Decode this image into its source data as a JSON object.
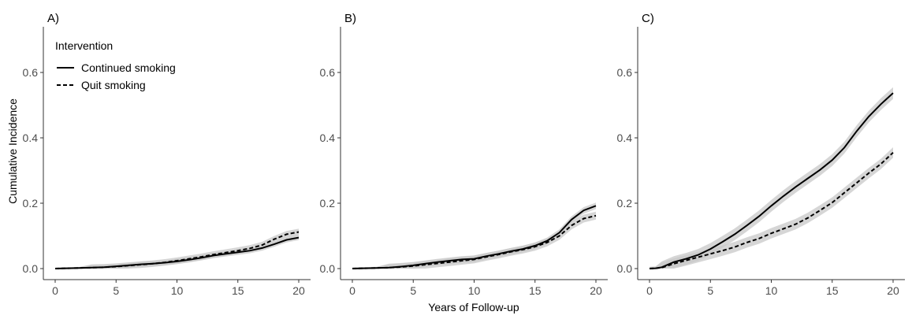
{
  "chart_data": {
    "type": "line",
    "ylabel": "Cumulative Incidence",
    "xlabel": "Years of Follow-up",
    "xlim": [
      0,
      20
    ],
    "ylim": [
      0,
      0.7
    ],
    "xticks": [
      0,
      5,
      10,
      15,
      20
    ],
    "yticks": [
      "0.0",
      "0.2",
      "0.4",
      "0.6"
    ],
    "grid": false,
    "legend": {
      "title": "Intervention",
      "placement": "top-left",
      "entries": [
        {
          "name": "Continued smoking",
          "linestyle": "solid"
        },
        {
          "name": "Quit smoking",
          "linestyle": "dashed"
        }
      ]
    },
    "colors": {
      "line": "#000000",
      "band": "#c8c8c8",
      "axis": "#333333",
      "tick_text": "#4d4d4d"
    },
    "panels": [
      {
        "tag": "A)",
        "series": [
          {
            "name": "Continued smoking",
            "band": 0.008,
            "x": [
              0,
              1,
              2,
              3,
              4,
              5,
              6,
              7,
              8,
              9,
              10,
              11,
              12,
              13,
              14,
              15,
              16,
              17,
              18,
              19,
              20
            ],
            "y": [
              0,
              0.001,
              0.002,
              0.003,
              0.004,
              0.007,
              0.01,
              0.013,
              0.015,
              0.018,
              0.022,
              0.027,
              0.033,
              0.04,
              0.045,
              0.05,
              0.055,
              0.063,
              0.075,
              0.088,
              0.095
            ]
          },
          {
            "name": "Quit smoking",
            "band": 0.01,
            "x": [
              0,
              1,
              2,
              3,
              4,
              5,
              6,
              7,
              8,
              9,
              10,
              11,
              12,
              13,
              14,
              15,
              16,
              17,
              18,
              19,
              20
            ],
            "y": [
              0,
              0.001,
              0.002,
              0.003,
              0.004,
              0.006,
              0.009,
              0.012,
              0.015,
              0.019,
              0.024,
              0.03,
              0.036,
              0.043,
              0.049,
              0.055,
              0.062,
              0.072,
              0.09,
              0.105,
              0.112
            ]
          }
        ]
      },
      {
        "tag": "B)",
        "series": [
          {
            "name": "Continued smoking",
            "band": 0.01,
            "x": [
              0,
              1,
              2,
              3,
              4,
              5,
              6,
              7,
              8,
              9,
              10,
              11,
              12,
              13,
              14,
              15,
              16,
              17,
              18,
              19,
              20
            ],
            "y": [
              0,
              0.001,
              0.002,
              0.003,
              0.006,
              0.01,
              0.015,
              0.02,
              0.024,
              0.028,
              0.03,
              0.038,
              0.045,
              0.053,
              0.06,
              0.07,
              0.085,
              0.11,
              0.15,
              0.178,
              0.192
            ]
          },
          {
            "name": "Quit smoking",
            "band": 0.012,
            "x": [
              0,
              1,
              2,
              3,
              4,
              5,
              6,
              7,
              8,
              9,
              10,
              11,
              12,
              13,
              14,
              15,
              16,
              17,
              18,
              19,
              20
            ],
            "y": [
              0,
              0.001,
              0.002,
              0.003,
              0.005,
              0.008,
              0.012,
              0.016,
              0.02,
              0.024,
              0.028,
              0.036,
              0.043,
              0.051,
              0.058,
              0.067,
              0.08,
              0.1,
              0.132,
              0.153,
              0.162
            ]
          }
        ]
      },
      {
        "tag": "C)",
        "series": [
          {
            "name": "Continued smoking",
            "band": 0.018,
            "x": [
              0,
              0.5,
              1,
              2,
              3,
              4,
              5,
              6,
              7,
              8,
              9,
              10,
              11,
              12,
              13,
              14,
              15,
              16,
              17,
              18,
              19,
              20
            ],
            "y": [
              0,
              0.001,
              0.004,
              0.02,
              0.03,
              0.042,
              0.06,
              0.082,
              0.105,
              0.132,
              0.16,
              0.192,
              0.222,
              0.25,
              0.276,
              0.302,
              0.332,
              0.37,
              0.42,
              0.465,
              0.503,
              0.537
            ]
          },
          {
            "name": "Quit smoking",
            "band": 0.016,
            "x": [
              0,
              0.5,
              1,
              2,
              3,
              4,
              5,
              6,
              7,
              8,
              9,
              10,
              11,
              12,
              13,
              14,
              15,
              16,
              17,
              18,
              19,
              20
            ],
            "y": [
              0,
              0.001,
              0.003,
              0.015,
              0.025,
              0.035,
              0.045,
              0.055,
              0.066,
              0.08,
              0.092,
              0.108,
              0.122,
              0.136,
              0.155,
              0.178,
              0.202,
              0.232,
              0.262,
              0.292,
              0.32,
              0.355
            ]
          }
        ]
      }
    ]
  }
}
